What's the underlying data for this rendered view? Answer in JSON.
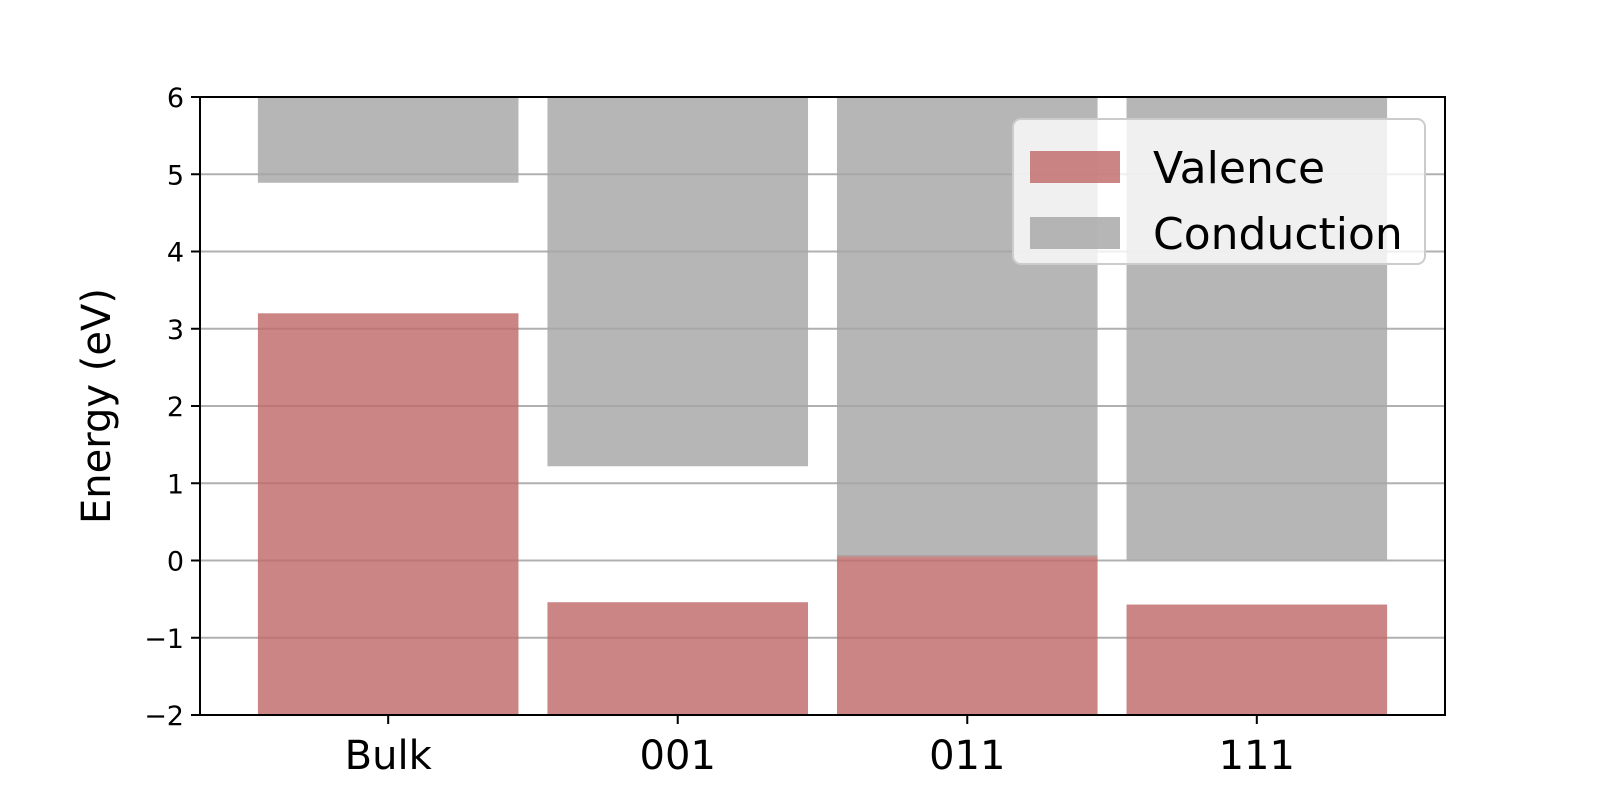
{
  "chart_data": {
    "type": "bar",
    "categories": [
      "Bulk",
      "001",
      "011",
      "111"
    ],
    "series": [
      {
        "name": "Valence",
        "from": [
          -2,
          -2,
          -2,
          -2
        ],
        "to": [
          3.2,
          -0.54,
          0.07,
          -0.57
        ]
      },
      {
        "name": "Conduction",
        "from": [
          4.89,
          1.22,
          0.05,
          0.0
        ],
        "to": [
          6,
          6,
          6,
          6
        ]
      }
    ],
    "colors": {
      "Valence": "#bf6a69",
      "Conduction": "#a6a6a6",
      "grid": "#b0b0b0"
    },
    "xlabel": "",
    "ylabel": "Energy (eV)",
    "ylim": [
      -2,
      6
    ],
    "yticks": [
      -2,
      -1,
      0,
      1,
      2,
      3,
      4,
      5,
      6
    ],
    "ytick_labels": [
      "−2",
      "−1",
      "0",
      "1",
      "2",
      "3",
      "4",
      "5",
      "6"
    ],
    "grid": true,
    "grid_axis": "y",
    "legend_position": "top-right"
  }
}
